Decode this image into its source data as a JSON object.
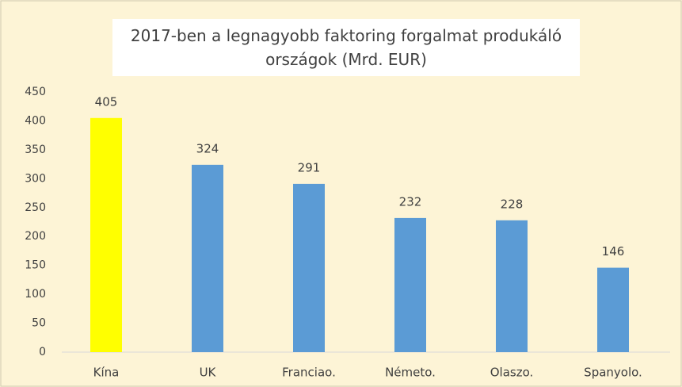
{
  "chart_data": {
    "type": "bar",
    "title": "2017-ben a legnagyobb faktoring forgalmat produkáló országok (Mrd. EUR)",
    "categories": [
      "Kína",
      "UK",
      "Franciao.",
      "Németo.",
      "Olaszo.",
      "Spanyolo."
    ],
    "values": [
      405,
      324,
      291,
      232,
      228,
      146
    ],
    "colors": [
      "#ffff00",
      "#5b9bd5",
      "#5b9bd5",
      "#5b9bd5",
      "#5b9bd5",
      "#5b9bd5"
    ],
    "ylim": [
      0,
      450
    ],
    "yticks": [
      0,
      50,
      100,
      150,
      200,
      250,
      300,
      350,
      400,
      450
    ],
    "grid": false
  }
}
